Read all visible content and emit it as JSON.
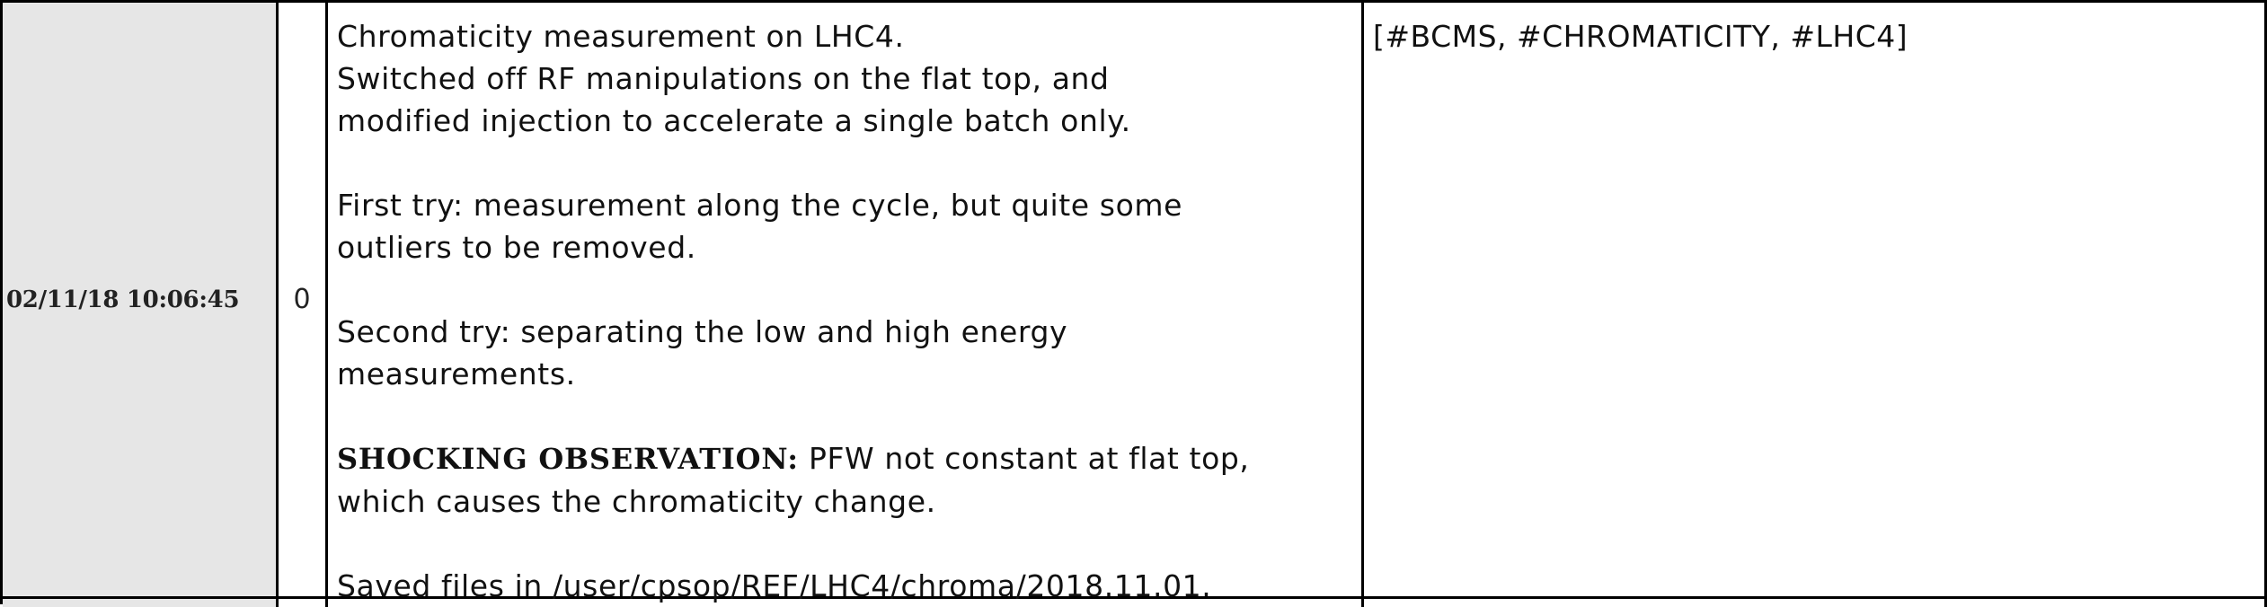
{
  "entry": {
    "timestamp": "02/11/18 10:06:45",
    "attachment_icon": "paperclip-icon",
    "attachment_glyph": "0",
    "comment": {
      "line1": "Chromaticity measurement on LHC4.",
      "line2": "Switched off RF manipulations on the flat top, and",
      "line3": "modified injection to accelerate a single batch only.",
      "line4": "First try: measurement along the cycle, but quite some",
      "line5": "outliers to be removed.",
      "line6": "Second try: separating the low and high energy",
      "line7": "measurements.",
      "bold_prefix": "SHOCKING OBSERVATION:",
      "line8_rest": " PFW not constant at flat top,",
      "line9": "which causes the chromaticity change.",
      "line10": "Saved files in /user/cpsop/REF/LHC4/chroma/2018.11.01."
    },
    "tags": "[#BCMS, #CHROMATICITY, #LHC4]"
  },
  "colors": {
    "time_cell_bg": "#e6e6e6",
    "border": "#000000",
    "text": "#111111"
  }
}
